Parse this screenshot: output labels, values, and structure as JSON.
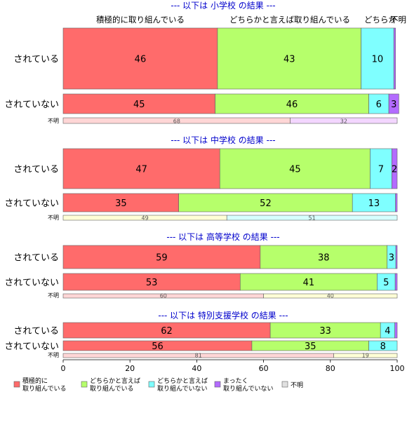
{
  "chart_data": {
    "type": "bar",
    "orientation": "horizontal",
    "stacked": true,
    "xlim": [
      0,
      100
    ],
    "xticks": [
      "0",
      "20",
      "40",
      "60",
      "80",
      "100"
    ],
    "top_labels": [
      "積極的に取り組んでいる",
      "どちらかと言えば取り組んでいる",
      "どちらか",
      "不明"
    ],
    "legend": [
      {
        "label": "積極的に\n取り組んでいる",
        "color": "#ff6b6b"
      },
      {
        "label": "どちらかと言えば\n取り組んでいる",
        "color": "#b6ff6b"
      },
      {
        "label": "どちらかと言えば\n取り組んでいない",
        "color": "#7fffff"
      },
      {
        "label": "まったく\n取り組んでいない",
        "color": "#b36bff"
      },
      {
        "label": "不明",
        "color": "#e0e0e0"
      }
    ],
    "legend_position": "bottom",
    "panels": [
      {
        "title": "--- 以下は 小学校 の結果 ---",
        "rows": [
          {
            "label": "されている",
            "values": [
              46.2,
              43,
              9.8,
              0.5
            ],
            "labels": [
              "46",
              "43",
              "10",
              ""
            ]
          },
          {
            "label": "されていない",
            "values": [
              45.5,
              46,
              6,
              3
            ],
            "labels": [
              "45",
              "46",
              "6",
              "3"
            ]
          }
        ],
        "unknown": {
          "label": "不明",
          "values": [
            68,
            32
          ],
          "labels": [
            "68",
            "32"
          ],
          "colors": [
            "#ffd6d6",
            "#f3d6ff"
          ]
        }
      },
      {
        "title": "--- 以下は 中学校 の結果 ---",
        "rows": [
          {
            "label": "されている",
            "values": [
              46.9,
              45,
              6.5,
              1.6
            ],
            "labels": [
              "47",
              "45",
              "7",
              "2"
            ]
          },
          {
            "label": "されていない",
            "values": [
              34.6,
              52,
              12.9,
              0.5
            ],
            "labels": [
              "35",
              "52",
              "13",
              ""
            ]
          }
        ],
        "unknown": {
          "label": "不明",
          "values": [
            49,
            51
          ],
          "labels": [
            "49",
            "51"
          ],
          "colors": [
            "#ffffd6",
            "#d6ffff"
          ]
        }
      },
      {
        "title": "--- 以下は 高等学校 の結果 ---",
        "rows": [
          {
            "label": "されている",
            "values": [
              59,
              38,
              2.6,
              0.4
            ],
            "labels": [
              "59",
              "38",
              "3",
              ""
            ]
          },
          {
            "label": "されていない",
            "values": [
              53,
              41,
              5.4,
              0.6
            ],
            "labels": [
              "53",
              "41",
              "5",
              ""
            ]
          }
        ],
        "unknown": {
          "label": "不明",
          "values": [
            60,
            40
          ],
          "labels": [
            "60",
            "40"
          ],
          "colors": [
            "#ffd6d6",
            "#ffffd6"
          ]
        }
      },
      {
        "title": "--- 以下は 特別支援学校 の結果 ---",
        "rows": [
          {
            "label": "されている",
            "values": [
              62,
              33,
              4.3,
              0.7
            ],
            "labels": [
              "62",
              "33",
              "4",
              ""
            ]
          },
          {
            "label": "されていない",
            "values": [
              56.5,
              35,
              8.5,
              0
            ],
            "labels": [
              "56",
              "35",
              "8",
              ""
            ]
          }
        ],
        "unknown": {
          "label": "不明",
          "values": [
            81,
            19
          ],
          "labels": [
            "81",
            "19"
          ],
          "colors": [
            "#ffd6d6",
            "#ffffd6"
          ]
        }
      }
    ]
  }
}
